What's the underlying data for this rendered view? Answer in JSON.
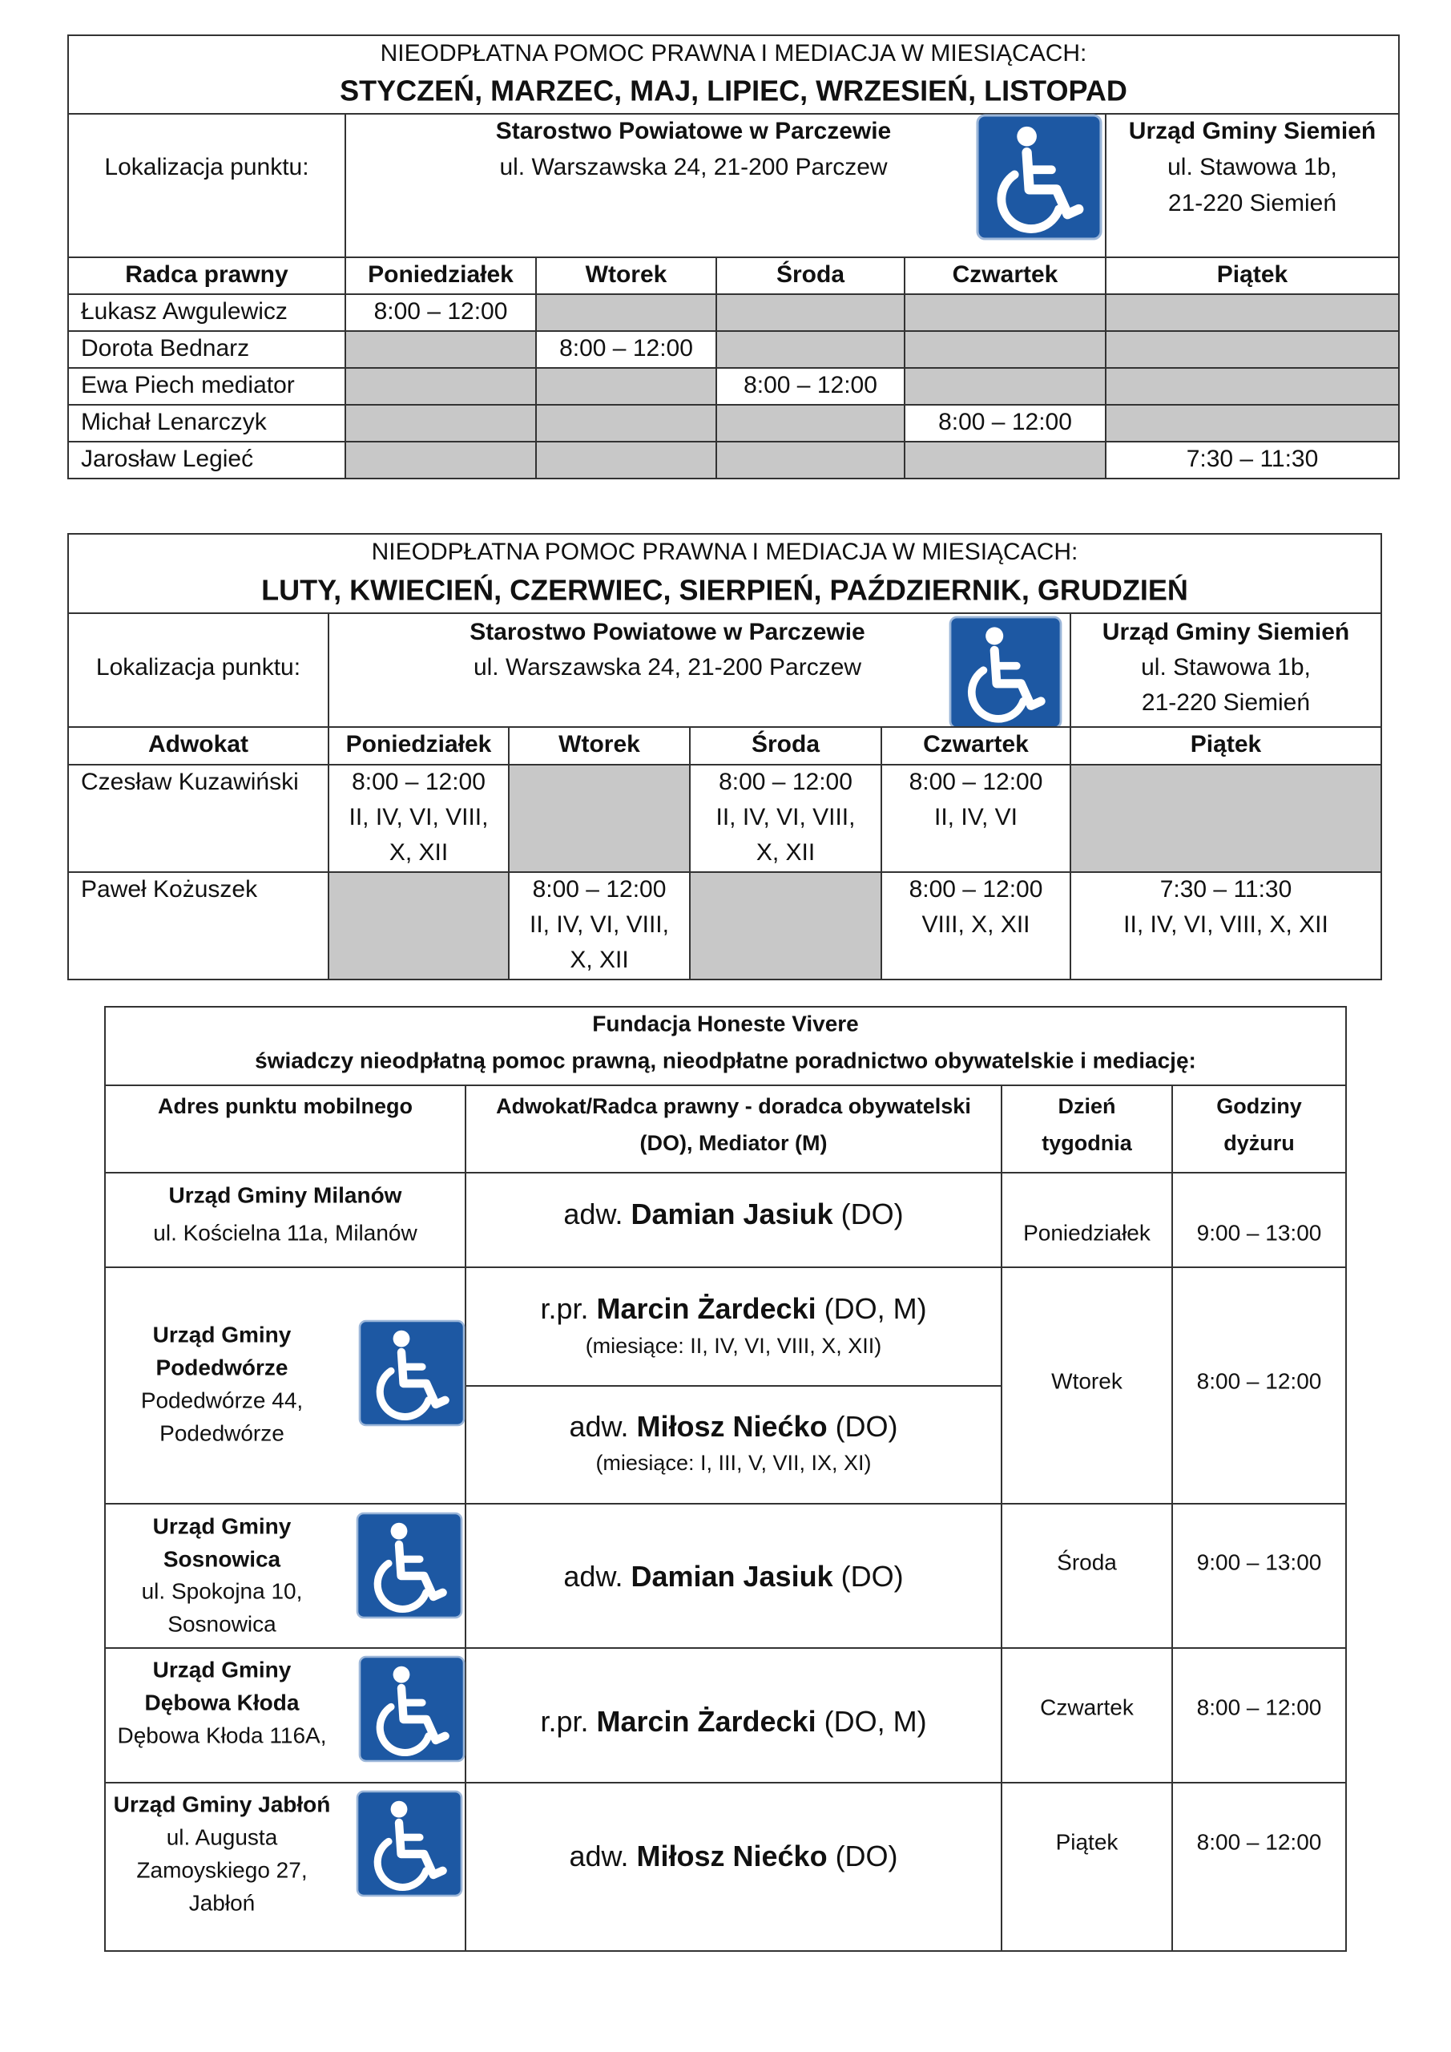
{
  "tables": [
    {
      "title_line1": "NIEODPŁATNA POMOC PRAWNA I MEDIACJA W MIESIĄCACH:",
      "title_line2": "STYCZEŃ, MARZEC, MAJ, LIPIEC, WRZESIEŃ, LISTOPAD",
      "location_label": "Lokalizacja punktu:",
      "location1": [
        "Starostwo Powiatowe w Parczewie",
        "ul. Warszawska 24, 21-200 Parczew"
      ],
      "location2": [
        "Urząd Gminy Siemień",
        "ul. Stawowa 1b,",
        "21-220 Siemień"
      ],
      "headers": [
        "Radca prawny",
        "Poniedziałek",
        "Wtorek",
        "Środa",
        "Czwartek",
        "Piątek"
      ],
      "rows": [
        {
          "name": "Łukasz Awgulewicz",
          "cells": [
            [
              "8:00 – 12:00"
            ],
            null,
            null,
            null,
            null
          ]
        },
        {
          "name": "Dorota Bednarz",
          "cells": [
            null,
            [
              "8:00 – 12:00"
            ],
            null,
            null,
            null
          ]
        },
        {
          "name": "Ewa Piech mediator",
          "cells": [
            null,
            null,
            [
              "8:00 – 12:00"
            ],
            null,
            null
          ]
        },
        {
          "name": "Michał Lenarczyk",
          "cells": [
            null,
            null,
            null,
            [
              "8:00 – 12:00"
            ],
            null
          ]
        },
        {
          "name": "Jarosław Legieć",
          "cells": [
            null,
            null,
            null,
            null,
            [
              "7:30 – 11:30"
            ]
          ]
        }
      ]
    },
    {
      "title_line1": "NIEODPŁATNA POMOC PRAWNA I MEDIACJA W MIESIĄCACH:",
      "title_line2": "LUTY, KWIECIEŃ, CZERWIEC, SIERPIEŃ, PAŹDZIERNIK, GRUDZIEŃ",
      "location_label": "Lokalizacja punktu:",
      "location1": [
        "Starostwo Powiatowe w Parczewie",
        "ul. Warszawska 24, 21-200 Parczew"
      ],
      "location2": [
        "Urząd Gminy Siemień",
        "ul. Stawowa 1b,",
        "21-220 Siemień"
      ],
      "headers": [
        "Adwokat",
        "Poniedziałek",
        "Wtorek",
        "Środa",
        "Czwartek",
        "Piątek"
      ],
      "rows": [
        {
          "name": "Czesław Kuzawiński",
          "cells": [
            [
              "8:00 – 12:00",
              "II, IV, VI, VIII,",
              "X, XII"
            ],
            null,
            [
              "8:00 – 12:00",
              "II, IV, VI, VIII,",
              "X, XII"
            ],
            [
              "8:00 – 12:00",
              "II, IV, VI"
            ],
            null
          ]
        },
        {
          "name": "Paweł Kożuszek",
          "cells": [
            null,
            [
              "8:00 – 12:00",
              "II, IV, VI, VIII,",
              "X, XII"
            ],
            null,
            [
              "8:00 – 12:00",
              "VIII, X, XII"
            ],
            [
              "7:30 – 11:30",
              "II, IV, VI, VIII, X, XII"
            ]
          ]
        }
      ]
    }
  ],
  "foundation": {
    "title": [
      "Fundacja Honeste Vivere",
      "świadczy nieodpłatną pomoc prawną, nieodpłatne poradnictwo obywatelskie i mediację:"
    ],
    "headers": [
      [
        "Adres punktu mobilnego"
      ],
      [
        "Adwokat/Radca prawny - doradca obywatelski",
        "(DO), Mediator (M)"
      ],
      [
        "Dzień",
        "tygodnia"
      ],
      [
        "Godziny",
        "dyżuru"
      ]
    ],
    "rows": [
      {
        "name": [
          "Urząd Gminy Milanów"
        ],
        "address": [
          "ul. Kościelna 11a, Milanów"
        ],
        "lawyers": [
          {
            "prefix": "adw.",
            "name": "Damian Jasiuk",
            "suffix": "(DO)"
          }
        ],
        "day": "Poniedziałek",
        "hours": "9:00 – 13:00"
      },
      {
        "name": [
          "Urząd Gminy",
          "Podedwórze"
        ],
        "address": [
          "Podedwórze 44,",
          "Podedwórze"
        ],
        "lawyers": [
          {
            "prefix": "r.pr.",
            "name": "Marcin Żardecki",
            "suffix": "(DO, M)",
            "note": "(miesiące: II, IV, VI, VIII, X, XII)"
          },
          {
            "prefix": "adw.",
            "name": "Miłosz Niećko",
            "suffix": "(DO)",
            "note": "(miesiące: I, III, V, VII, IX, XI)"
          }
        ],
        "day": "Wtorek",
        "hours": "8:00 – 12:00"
      },
      {
        "name": [
          "Urząd Gminy",
          "Sosnowica"
        ],
        "address": [
          "ul. Spokojna 10,",
          "Sosnowica"
        ],
        "lawyers": [
          {
            "prefix": "adw.",
            "name": "Damian Jasiuk",
            "suffix": "(DO)"
          }
        ],
        "day": "Środa",
        "hours": "9:00 – 13:00"
      },
      {
        "name": [
          "Urząd Gminy",
          "Dębowa Kłoda"
        ],
        "address": [
          "Dębowa Kłoda 116A,"
        ],
        "lawyers": [
          {
            "prefix": "r.pr.",
            "name": "Marcin Żardecki",
            "suffix": "(DO, M)"
          }
        ],
        "day": "Czwartek",
        "hours": "8:00 – 12:00"
      },
      {
        "name": [
          "Urząd Gminy Jabłoń"
        ],
        "address": [
          "ul. Augusta",
          "Zamoyskiego 27,",
          "Jabłoń"
        ],
        "lawyers": [
          {
            "prefix": "adw.",
            "name": "Miłosz Niećko",
            "suffix": "(DO)"
          }
        ],
        "day": "Piątek",
        "hours": "8:00 – 12:00"
      }
    ]
  }
}
